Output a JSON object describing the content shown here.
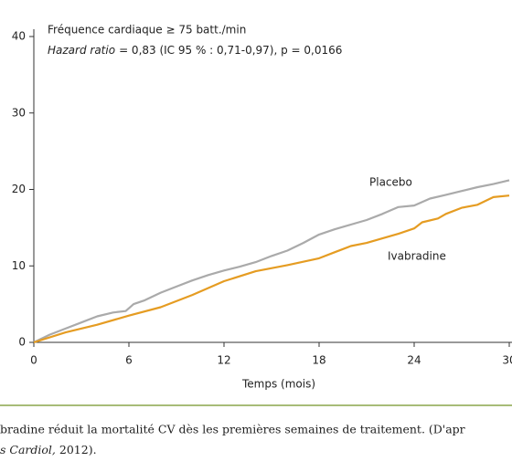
{
  "chart_data": {
    "type": "line",
    "title": "Fréquence cardiaque ≥ 75 batt./min",
    "subtitle_italic": "Hazard ratio",
    "subtitle": "= 0,83 (IC 95 % : 0,71-0,97), p = 0,0166",
    "xlabel": "Temps (mois)",
    "xlim": [
      0,
      30
    ],
    "xticks": [
      0,
      6,
      12,
      18,
      24,
      30
    ],
    "ylim": [
      0,
      40
    ],
    "yticks": [
      0,
      10,
      20,
      30,
      40
    ],
    "series": [
      {
        "name": "Placebo",
        "color": "#aaaaaa",
        "x": [
          0,
          1,
          2,
          3,
          4,
          5,
          5.8,
          6.3,
          7,
          8,
          9,
          10,
          11,
          12,
          13,
          14,
          15,
          16,
          17,
          18,
          19,
          20,
          21,
          22,
          23,
          24,
          25,
          26,
          27,
          28,
          29,
          30
        ],
        "values": [
          0,
          1,
          1.8,
          2.6,
          3.4,
          3.9,
          4.1,
          5,
          5.5,
          6.5,
          7.3,
          8.1,
          8.8,
          9.4,
          9.9,
          10.5,
          11.3,
          12,
          13,
          14.1,
          14.8,
          15.4,
          16,
          16.8,
          17.7,
          17.9,
          18.8,
          19.3,
          19.8,
          20.3,
          20.7,
          21.2
        ]
      },
      {
        "name": "Ivabradine",
        "color": "#e59c22",
        "x": [
          0,
          2,
          4,
          6,
          8,
          10,
          12,
          14,
          16,
          18,
          19,
          20,
          21,
          22,
          23,
          24,
          24.5,
          25.5,
          26,
          27,
          28,
          29,
          30
        ],
        "values": [
          0,
          1.3,
          2.3,
          3.5,
          4.6,
          6.2,
          8,
          9.3,
          10.1,
          11,
          11.8,
          12.6,
          13,
          13.6,
          14.2,
          14.9,
          15.7,
          16.2,
          16.8,
          17.6,
          18,
          19,
          19.2
        ]
      }
    ]
  },
  "caption": {
    "line1": "bradine réduit la mortalité CV dès les premières semaines de traitement. (D'apr",
    "line2_italic": "s Cardiol,",
    "line2": "2012)."
  }
}
